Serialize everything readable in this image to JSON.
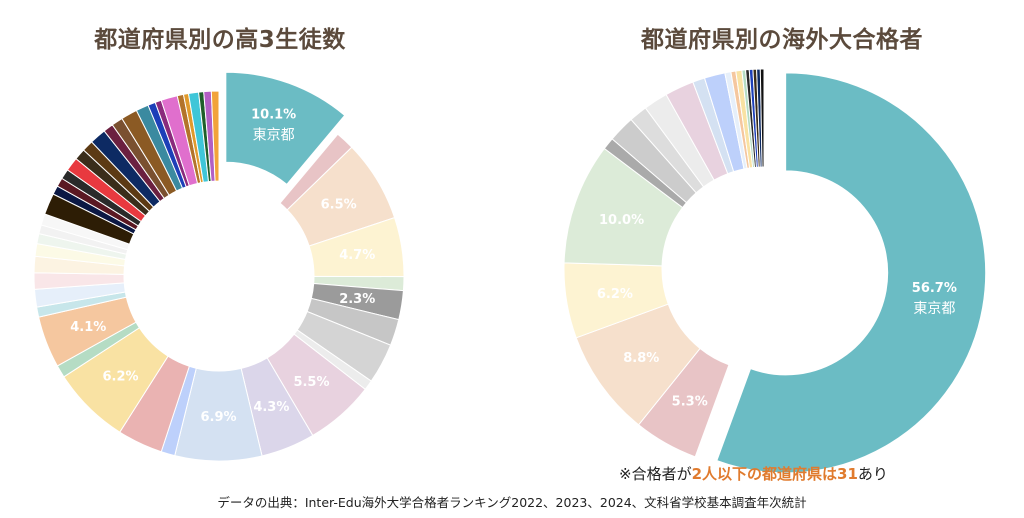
{
  "chart_data": [
    {
      "type": "pie",
      "title": "都道府県別の高3生徒数",
      "explode_index": 0,
      "slices": [
        {
          "value": 10.1,
          "color": "#6bbcc4",
          "label": "10.1%",
          "name": "東京都"
        },
        {
          "value": 1.5,
          "color": "#e8c4c6",
          "label": ""
        },
        {
          "value": 6.5,
          "color": "#f6e0cc",
          "label": "6.5%"
        },
        {
          "value": 4.7,
          "color": "#fdf3d2",
          "label": "4.7%"
        },
        {
          "value": 1.1,
          "color": "#dcebd8",
          "label": ""
        },
        {
          "value": 2.3,
          "color": "#9b9b9b",
          "label": "2.3%"
        },
        {
          "value": 2.1,
          "color": "#c6c6c6",
          "label": ""
        },
        {
          "value": 3.2,
          "color": "#d4d4d4",
          "label": ""
        },
        {
          "value": 0.8,
          "color": "#ececec",
          "label": ""
        },
        {
          "value": 5.5,
          "color": "#e8d2df",
          "label": "5.5%"
        },
        {
          "value": 4.3,
          "color": "#dbd6ea",
          "label": "4.3%"
        },
        {
          "value": 6.9,
          "color": "#d4e1f2",
          "label": "6.9%"
        },
        {
          "value": 1.1,
          "color": "#bdd0fb",
          "label": ""
        },
        {
          "value": 3.6,
          "color": "#eab3b2",
          "label": ""
        },
        {
          "value": 6.2,
          "color": "#f9e2a3",
          "label": "6.2%"
        },
        {
          "value": 1.0,
          "color": "#b5dcc4",
          "label": ""
        },
        {
          "value": 4.1,
          "color": "#f5c79f",
          "label": "4.1%"
        },
        {
          "value": 0.8,
          "color": "#c7e6ea",
          "label": ""
        },
        {
          "value": 1.4,
          "color": "#e6effa",
          "label": ""
        },
        {
          "value": 1.3,
          "color": "#f9e6e8",
          "label": ""
        },
        {
          "value": 1.3,
          "color": "#fcf3e2",
          "label": ""
        },
        {
          "value": 1.0,
          "color": "#fcfae6",
          "label": ""
        },
        {
          "value": 0.8,
          "color": "#eef5ee",
          "label": ""
        },
        {
          "value": 0.7,
          "color": "#f2f2f2",
          "label": ""
        },
        {
          "value": 0.9,
          "color": "#f7f7f7",
          "label": ""
        },
        {
          "value": 1.7,
          "color": "#2d1d05",
          "label": ""
        },
        {
          "value": 0.7,
          "color": "#0b1844",
          "label": ""
        },
        {
          "value": 0.7,
          "color": "#5a1822",
          "label": ""
        },
        {
          "value": 0.8,
          "color": "#2a2a2a",
          "label": ""
        },
        {
          "value": 1.1,
          "color": "#e8393f",
          "label": ""
        },
        {
          "value": 0.9,
          "color": "#3a2d1a",
          "label": ""
        },
        {
          "value": 0.9,
          "color": "#5c3a14",
          "label": ""
        },
        {
          "value": 1.3,
          "color": "#0d2a63",
          "label": ""
        },
        {
          "value": 0.8,
          "color": "#6b2040",
          "label": ""
        },
        {
          "value": 0.9,
          "color": "#7a5030",
          "label": ""
        },
        {
          "value": 1.3,
          "color": "#8b5a24",
          "label": ""
        },
        {
          "value": 1.0,
          "color": "#3b8aa0",
          "label": ""
        },
        {
          "value": 0.6,
          "color": "#1d3fb8",
          "label": ""
        },
        {
          "value": 0.5,
          "color": "#8a2a7c",
          "label": ""
        },
        {
          "value": 1.3,
          "color": "#e06fcd",
          "label": ""
        },
        {
          "value": 0.5,
          "color": "#b3732a",
          "label": ""
        },
        {
          "value": 0.4,
          "color": "#e09a2c",
          "label": ""
        },
        {
          "value": 0.8,
          "color": "#3fc6d8",
          "label": ""
        },
        {
          "value": 0.4,
          "color": "#1e5f2a",
          "label": ""
        },
        {
          "value": 0.6,
          "color": "#b25fc4",
          "label": ""
        },
        {
          "value": 0.6,
          "color": "#f2a33a",
          "label": ""
        }
      ]
    },
    {
      "type": "pie",
      "title": "都道府県別の海外大合格者",
      "explode_index": 0,
      "slices": [
        {
          "value": 56.7,
          "color": "#6bbcc4",
          "label": "56.7%",
          "name": "東京都"
        },
        {
          "value": 5.3,
          "color": "#e8c4c6",
          "label": "5.3%"
        },
        {
          "value": 8.8,
          "color": "#f6e0cc",
          "label": "8.8%"
        },
        {
          "value": 6.2,
          "color": "#fdf3d2",
          "label": "6.2%"
        },
        {
          "value": 10.0,
          "color": "#dcebd8",
          "label": "10.0%"
        },
        {
          "value": 1.0,
          "color": "#aaaaaa",
          "label": ""
        },
        {
          "value": 2.2,
          "color": "#cccccc",
          "label": ""
        },
        {
          "value": 1.5,
          "color": "#dddddd",
          "label": ""
        },
        {
          "value": 2.0,
          "color": "#ececec",
          "label": ""
        },
        {
          "value": 2.4,
          "color": "#e8d2df",
          "label": ""
        },
        {
          "value": 1.0,
          "color": "#d4e1f2",
          "label": ""
        },
        {
          "value": 1.7,
          "color": "#bdd0fb",
          "label": ""
        },
        {
          "value": 0.5,
          "color": "#e6effa",
          "label": ""
        },
        {
          "value": 0.4,
          "color": "#f5c79f",
          "label": ""
        },
        {
          "value": 0.5,
          "color": "#f9e2a3",
          "label": ""
        },
        {
          "value": 0.3,
          "color": "#b5dcc4",
          "label": ""
        },
        {
          "value": 0.3,
          "color": "#2a2a2a",
          "label": ""
        },
        {
          "value": 0.3,
          "color": "#1d3fb8",
          "label": ""
        },
        {
          "value": 0.3,
          "color": "#3a2d1a",
          "label": ""
        },
        {
          "value": 0.3,
          "color": "#0d2a63",
          "label": ""
        },
        {
          "value": 0.3,
          "color": "#111111",
          "label": ""
        }
      ]
    }
  ],
  "note": {
    "prefix": "※合格者が",
    "highlight": "2人以下の都道府県は31",
    "suffix": "あり"
  },
  "source": "データの出典：Inter-Edu海外大学合格者ランキング2022、2023、2024、文科省学校基本調査年次統計"
}
